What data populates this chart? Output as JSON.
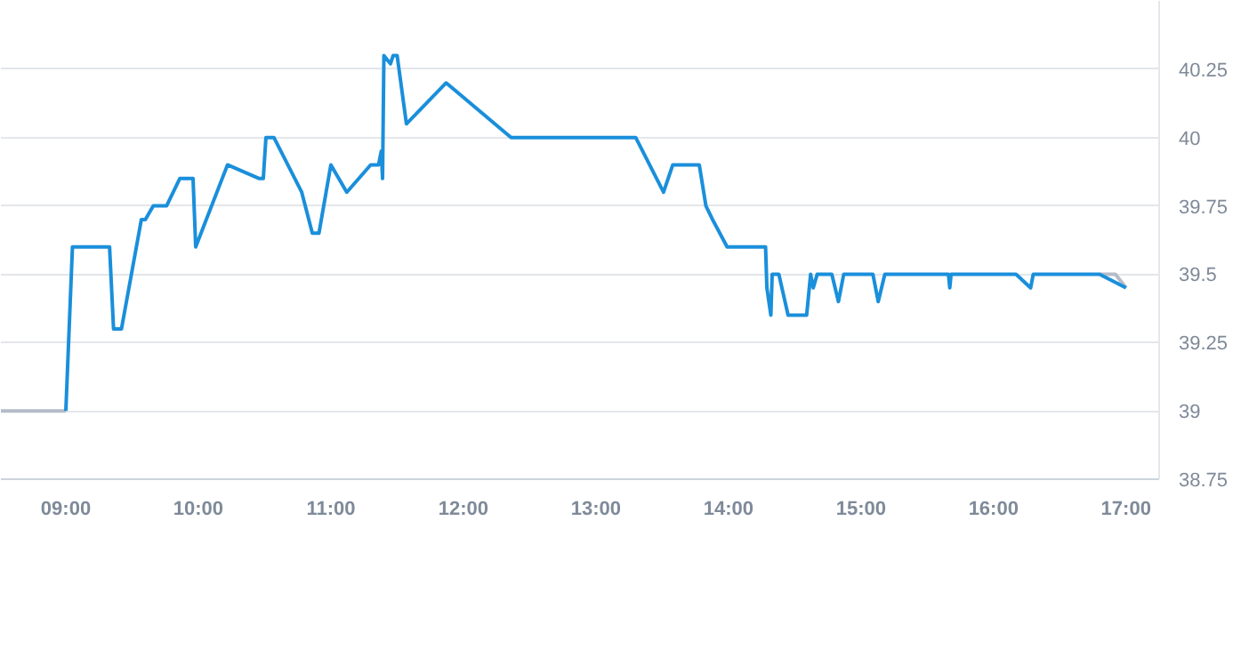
{
  "chart_data": {
    "type": "line",
    "xlim": [
      8.51,
      17.25
    ],
    "ylim": [
      38.75,
      40.5
    ],
    "xticks": [
      {
        "value": 9,
        "label": "09:00"
      },
      {
        "value": 10,
        "label": "10:00"
      },
      {
        "value": 11,
        "label": "11:00"
      },
      {
        "value": 12,
        "label": "12:00"
      },
      {
        "value": 13,
        "label": "13:00"
      },
      {
        "value": 14,
        "label": "14:00"
      },
      {
        "value": 15,
        "label": "15:00"
      },
      {
        "value": 16,
        "label": "16:00"
      },
      {
        "value": 17,
        "label": "17:00"
      }
    ],
    "yticks": [
      38.75,
      39,
      39.25,
      39.5,
      39.75,
      40,
      40.25
    ],
    "grid": "y",
    "marker": "none",
    "line_style": "solid",
    "series": [
      {
        "color": "#b4bcc8",
        "x": [
          8.51,
          9.0,
          12.0,
          16.8,
          16.92,
          17.0
        ],
        "values": [
          39.0,
          39.0,
          null,
          39.5,
          39.5,
          39.45
        ]
      },
      {
        "color": "#1a8fdb",
        "x": [
          9.0,
          9.05,
          9.33,
          9.36,
          9.42,
          9.57,
          9.6,
          9.66,
          9.76,
          9.86,
          9.96,
          9.98,
          10.22,
          10.46,
          10.49,
          10.51,
          10.57,
          10.78,
          10.86,
          10.91,
          11.0,
          11.12,
          11.3,
          11.36,
          11.38,
          11.39,
          11.4,
          11.45,
          11.47,
          11.5,
          11.57,
          11.87,
          12.36,
          13.3,
          13.51,
          13.58,
          13.78,
          13.83,
          13.88,
          13.99,
          14.28,
          14.29,
          14.32,
          14.33,
          14.38,
          14.45,
          14.59,
          14.62,
          14.64,
          14.67,
          14.78,
          14.83,
          14.87,
          15.09,
          15.13,
          15.18,
          15.66,
          15.67,
          15.68,
          16.17,
          16.28,
          16.3,
          16.8,
          17.0
        ],
        "values": [
          39.0,
          39.6,
          39.6,
          39.3,
          39.3,
          39.7,
          39.7,
          39.75,
          39.75,
          39.85,
          39.85,
          39.6,
          39.9,
          39.85,
          39.85,
          40.0,
          40.0,
          39.8,
          39.65,
          39.65,
          39.9,
          39.8,
          39.9,
          39.9,
          39.95,
          39.85,
          40.3,
          40.27,
          40.3,
          40.3,
          40.05,
          40.2,
          40.0,
          40.0,
          39.8,
          39.9,
          39.9,
          39.75,
          39.7,
          39.6,
          39.6,
          39.45,
          39.35,
          39.5,
          39.5,
          39.35,
          39.35,
          39.5,
          39.45,
          39.5,
          39.5,
          39.4,
          39.5,
          39.5,
          39.4,
          39.5,
          39.5,
          39.45,
          39.5,
          39.5,
          39.45,
          39.5,
          39.5,
          39.45
        ]
      }
    ]
  }
}
